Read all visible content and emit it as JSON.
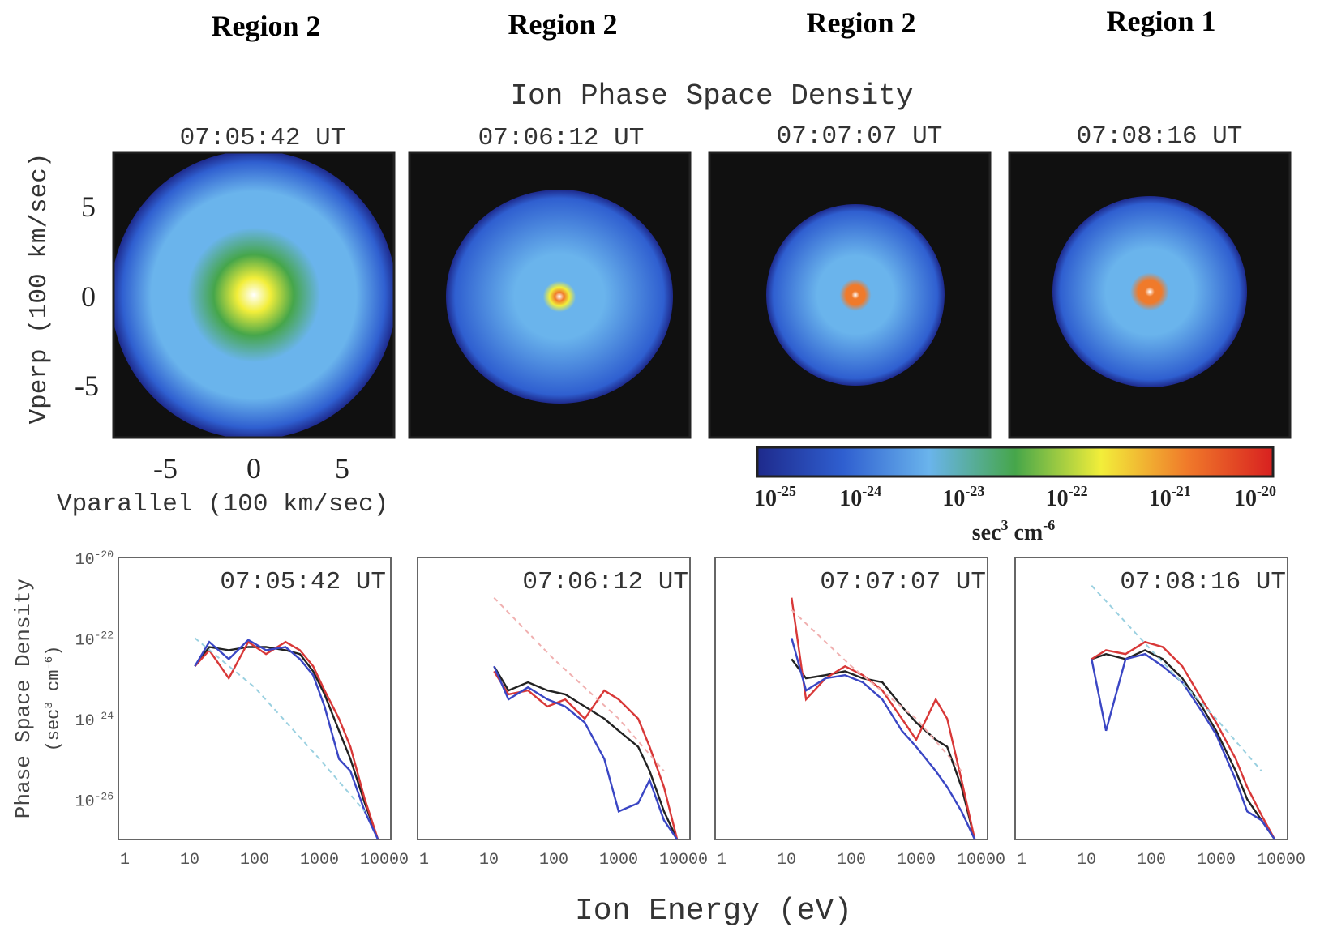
{
  "regions": [
    "Region 2",
    "Region 2",
    "Region 2",
    "Region 1"
  ],
  "top_title": "Ion Phase Space Density",
  "times": [
    "07:05:42 UT",
    "07:06:12 UT",
    "07:07:07 UT",
    "07:08:16 UT"
  ],
  "top_axes": {
    "ylabel": "Vperp (100 km/sec)",
    "xlabel": "Vparallel (100 km/sec)",
    "yticks": [
      "5",
      "0",
      "-5"
    ],
    "xticks": [
      "-5",
      "0",
      "5"
    ]
  },
  "colorbar": {
    "tick_bases": [
      "10",
      "10",
      "10",
      "10",
      "10",
      "10"
    ],
    "tick_exps": [
      "-25",
      "-24",
      "-23",
      "-22",
      "-21",
      "-20"
    ],
    "unit_base": "sec",
    "unit_exp1": "3",
    "unit_mid": " cm",
    "unit_exp2": "-6",
    "colors": [
      "#1e2a8c",
      "#2f5fd0",
      "#6ab4ec",
      "#46a64a",
      "#f2ee3a",
      "#f07a2a",
      "#d82020"
    ]
  },
  "bottom_axes": {
    "ylabel_top": "Phase Space Density",
    "ylabel_bot_base": "(sec",
    "ylabel_bot_exp1": "3",
    "ylabel_bot_mid": " cm",
    "ylabel_bot_exp2": "-6",
    "ylabel_bot_end": ")",
    "ytick_base": "10",
    "ytick_exps": [
      "-20",
      "-22",
      "-24",
      "-26"
    ],
    "xticks": [
      "1",
      "10",
      "100",
      "1000",
      "10000"
    ],
    "xlabel": "Ion Energy (eV)"
  },
  "chart_data": [
    {
      "type": "heatmap",
      "title": "07:05:42 UT",
      "xlabel": "Vparallel (100 km/sec)",
      "ylabel": "Vperp (100 km/sec)",
      "xlim": [
        -8,
        8
      ],
      "ylim": [
        -8,
        8
      ],
      "colorscale_log10": [
        -25,
        -20
      ],
      "peak_log10": -21.5,
      "core_radius": 3.5,
      "outer_radius": 7.5
    },
    {
      "type": "heatmap",
      "title": "07:06:12 UT",
      "xlabel": "Vparallel (100 km/sec)",
      "ylabel": "Vperp (100 km/sec)",
      "xlim": [
        -8,
        8
      ],
      "ylim": [
        -8,
        8
      ],
      "colorscale_log10": [
        -25,
        -20
      ],
      "peak_log10": -21.0,
      "core_radius": 0.8,
      "outer_radius": 5.5
    },
    {
      "type": "heatmap",
      "title": "07:07:07 UT",
      "xlabel": "Vparallel (100 km/sec)",
      "ylabel": "Vperp (100 km/sec)",
      "xlim": [
        -8,
        8
      ],
      "ylim": [
        -8,
        8
      ],
      "colorscale_log10": [
        -25,
        -20
      ],
      "peak_log10": -20.5,
      "core_radius": 0.8,
      "outer_radius": 4.5
    },
    {
      "type": "heatmap",
      "title": "07:08:16 UT",
      "xlabel": "Vparallel (100 km/sec)",
      "ylabel": "Vperp (100 km/sec)",
      "xlim": [
        -8,
        8
      ],
      "ylim": [
        -8,
        8
      ],
      "colorscale_log10": [
        -25,
        -20
      ],
      "peak_log10": -20.5,
      "core_radius": 1.0,
      "outer_radius": 5.0
    },
    {
      "type": "line",
      "title": "07:05:42 UT",
      "xlabel": "Ion Energy (eV)",
      "ylabel": "Phase Space Density (sec3 cm-6)",
      "xscale": "log",
      "yscale": "log",
      "xlim": [
        1,
        10000
      ],
      "ylim": [
        1e-27,
        1e-20
      ],
      "series": [
        {
          "color": "#222222",
          "x": [
            12,
            20,
            40,
            80,
            150,
            300,
            500,
            800,
            1200,
            2000,
            3000,
            5000,
            8000
          ],
          "y": [
            2e-23,
            6e-23,
            5e-23,
            6e-23,
            6e-23,
            5e-23,
            4e-23,
            1.5e-23,
            4e-24,
            5e-25,
            1e-25,
            8e-27,
            1e-27
          ]
        },
        {
          "color": "#d83838",
          "x": [
            12,
            20,
            40,
            80,
            150,
            300,
            500,
            800,
            1200,
            2000,
            3000,
            5000,
            8000
          ],
          "y": [
            2e-23,
            5e-23,
            1e-23,
            8e-23,
            4e-23,
            8e-23,
            5e-23,
            2e-23,
            5e-24,
            1e-24,
            2e-25,
            1e-26,
            1e-27
          ]
        },
        {
          "color": "#3a46c4",
          "x": [
            12,
            20,
            40,
            80,
            150,
            300,
            500,
            800,
            1200,
            2000,
            3000,
            5000,
            8000
          ],
          "y": [
            2e-23,
            8e-23,
            3e-23,
            9e-23,
            5e-23,
            6e-23,
            3e-23,
            1.2e-23,
            2e-24,
            1e-25,
            5e-26,
            5e-27,
            1e-27
          ]
        },
        {
          "color": "#9ad0e0",
          "dashed": true,
          "x": [
            12,
            100,
            1000,
            5000
          ],
          "y": [
            1e-22,
            6e-24,
            1e-25,
            5e-27
          ]
        }
      ]
    },
    {
      "type": "line",
      "title": "07:06:12 UT",
      "xlabel": "Ion Energy (eV)",
      "ylabel": "Phase Space Density (sec3 cm-6)",
      "xscale": "log",
      "yscale": "log",
      "xlim": [
        1,
        10000
      ],
      "ylim": [
        1e-27,
        1e-20
      ],
      "series": [
        {
          "color": "#222222",
          "x": [
            12,
            20,
            40,
            80,
            150,
            300,
            600,
            1000,
            2000,
            3000,
            5000,
            8000
          ],
          "y": [
            2e-23,
            5e-24,
            8e-24,
            5e-24,
            4e-24,
            2e-24,
            1e-24,
            5e-25,
            2e-25,
            5e-26,
            5e-27,
            1e-27
          ]
        },
        {
          "color": "#d83838",
          "x": [
            12,
            20,
            40,
            80,
            150,
            300,
            600,
            1000,
            2000,
            3000,
            5000,
            8000
          ],
          "y": [
            1.5e-23,
            4e-24,
            5e-24,
            2e-24,
            3e-24,
            1e-24,
            5e-24,
            3e-24,
            1e-24,
            2e-25,
            2e-26,
            1e-27
          ]
        },
        {
          "color": "#3a46c4",
          "x": [
            12,
            20,
            40,
            80,
            150,
            300,
            600,
            1000,
            2000,
            3000,
            5000,
            8000
          ],
          "y": [
            2e-23,
            3e-24,
            6e-24,
            3e-24,
            2e-24,
            8e-25,
            1e-25,
            5e-27,
            8e-27,
            3e-26,
            3e-27,
            1e-27
          ]
        },
        {
          "color": "#f0b0b0",
          "dashed": true,
          "x": [
            12,
            100,
            1000,
            5000
          ],
          "y": [
            1e-21,
            3e-23,
            1e-24,
            5e-26
          ]
        }
      ]
    },
    {
      "type": "line",
      "title": "07:07:07 UT",
      "xlabel": "Ion Energy (eV)",
      "ylabel": "Phase Space Density (sec3 cm-6)",
      "xscale": "log",
      "yscale": "log",
      "xlim": [
        1,
        10000
      ],
      "ylim": [
        1e-27,
        1e-20
      ],
      "series": [
        {
          "color": "#222222",
          "x": [
            12,
            20,
            40,
            80,
            150,
            300,
            600,
            1000,
            2000,
            3000,
            5000,
            8000
          ],
          "y": [
            3e-23,
            1e-23,
            1.2e-23,
            1.5e-23,
            1e-23,
            8e-24,
            2e-24,
            8e-25,
            3e-25,
            2e-25,
            2e-26,
            1e-27
          ]
        },
        {
          "color": "#d83838",
          "x": [
            12,
            20,
            40,
            80,
            150,
            300,
            600,
            1000,
            2000,
            3000,
            5000,
            8000
          ],
          "y": [
            1e-21,
            3e-24,
            1e-23,
            2e-23,
            1.2e-23,
            5e-24,
            1e-24,
            3e-25,
            3e-24,
            1e-24,
            3e-26,
            1e-27
          ]
        },
        {
          "color": "#3a46c4",
          "x": [
            12,
            20,
            40,
            80,
            150,
            300,
            600,
            1000,
            2000,
            3000,
            5000,
            8000
          ],
          "y": [
            1e-22,
            5e-24,
            1e-23,
            1.2e-23,
            8e-24,
            3e-24,
            5e-25,
            2e-25,
            5e-26,
            2e-26,
            5e-27,
            1e-27
          ]
        },
        {
          "color": "#f0b0b0",
          "dashed": true,
          "x": [
            12,
            100,
            1000,
            5000
          ],
          "y": [
            5e-22,
            2e-23,
            1e-24,
            5e-26
          ]
        }
      ]
    },
    {
      "type": "line",
      "title": "07:08:16 UT",
      "xlabel": "Ion Energy (eV)",
      "ylabel": "Phase Space Density (sec3 cm-6)",
      "xscale": "log",
      "yscale": "log",
      "xlim": [
        1,
        10000
      ],
      "ylim": [
        1e-27,
        1e-20
      ],
      "series": [
        {
          "color": "#222222",
          "x": [
            12,
            20,
            40,
            80,
            150,
            300,
            600,
            1000,
            2000,
            3000,
            5000,
            8000
          ],
          "y": [
            3e-23,
            4e-23,
            3e-23,
            5e-23,
            3e-23,
            1e-23,
            2e-24,
            5e-25,
            5e-26,
            1e-26,
            3e-27,
            1e-27
          ]
        },
        {
          "color": "#d83838",
          "x": [
            12,
            20,
            40,
            80,
            150,
            300,
            600,
            1000,
            2000,
            3000,
            5000,
            8000
          ],
          "y": [
            3e-23,
            5e-23,
            4e-23,
            8e-23,
            6e-23,
            2e-23,
            3e-24,
            8e-25,
            1e-25,
            2e-26,
            4e-27,
            1e-27
          ]
        },
        {
          "color": "#3a46c4",
          "x": [
            12,
            20,
            40,
            80,
            150,
            300,
            600,
            1000,
            2000,
            3000,
            5000,
            8000
          ],
          "y": [
            3e-23,
            5e-25,
            3e-23,
            4e-23,
            2e-23,
            8e-24,
            1.5e-24,
            4e-25,
            3e-26,
            5e-27,
            3e-27,
            1e-27
          ]
        },
        {
          "color": "#9ad0e0",
          "dashed": true,
          "x": [
            12,
            100,
            1000,
            5000
          ],
          "y": [
            2e-21,
            5e-23,
            1e-24,
            5e-26
          ]
        }
      ]
    }
  ]
}
